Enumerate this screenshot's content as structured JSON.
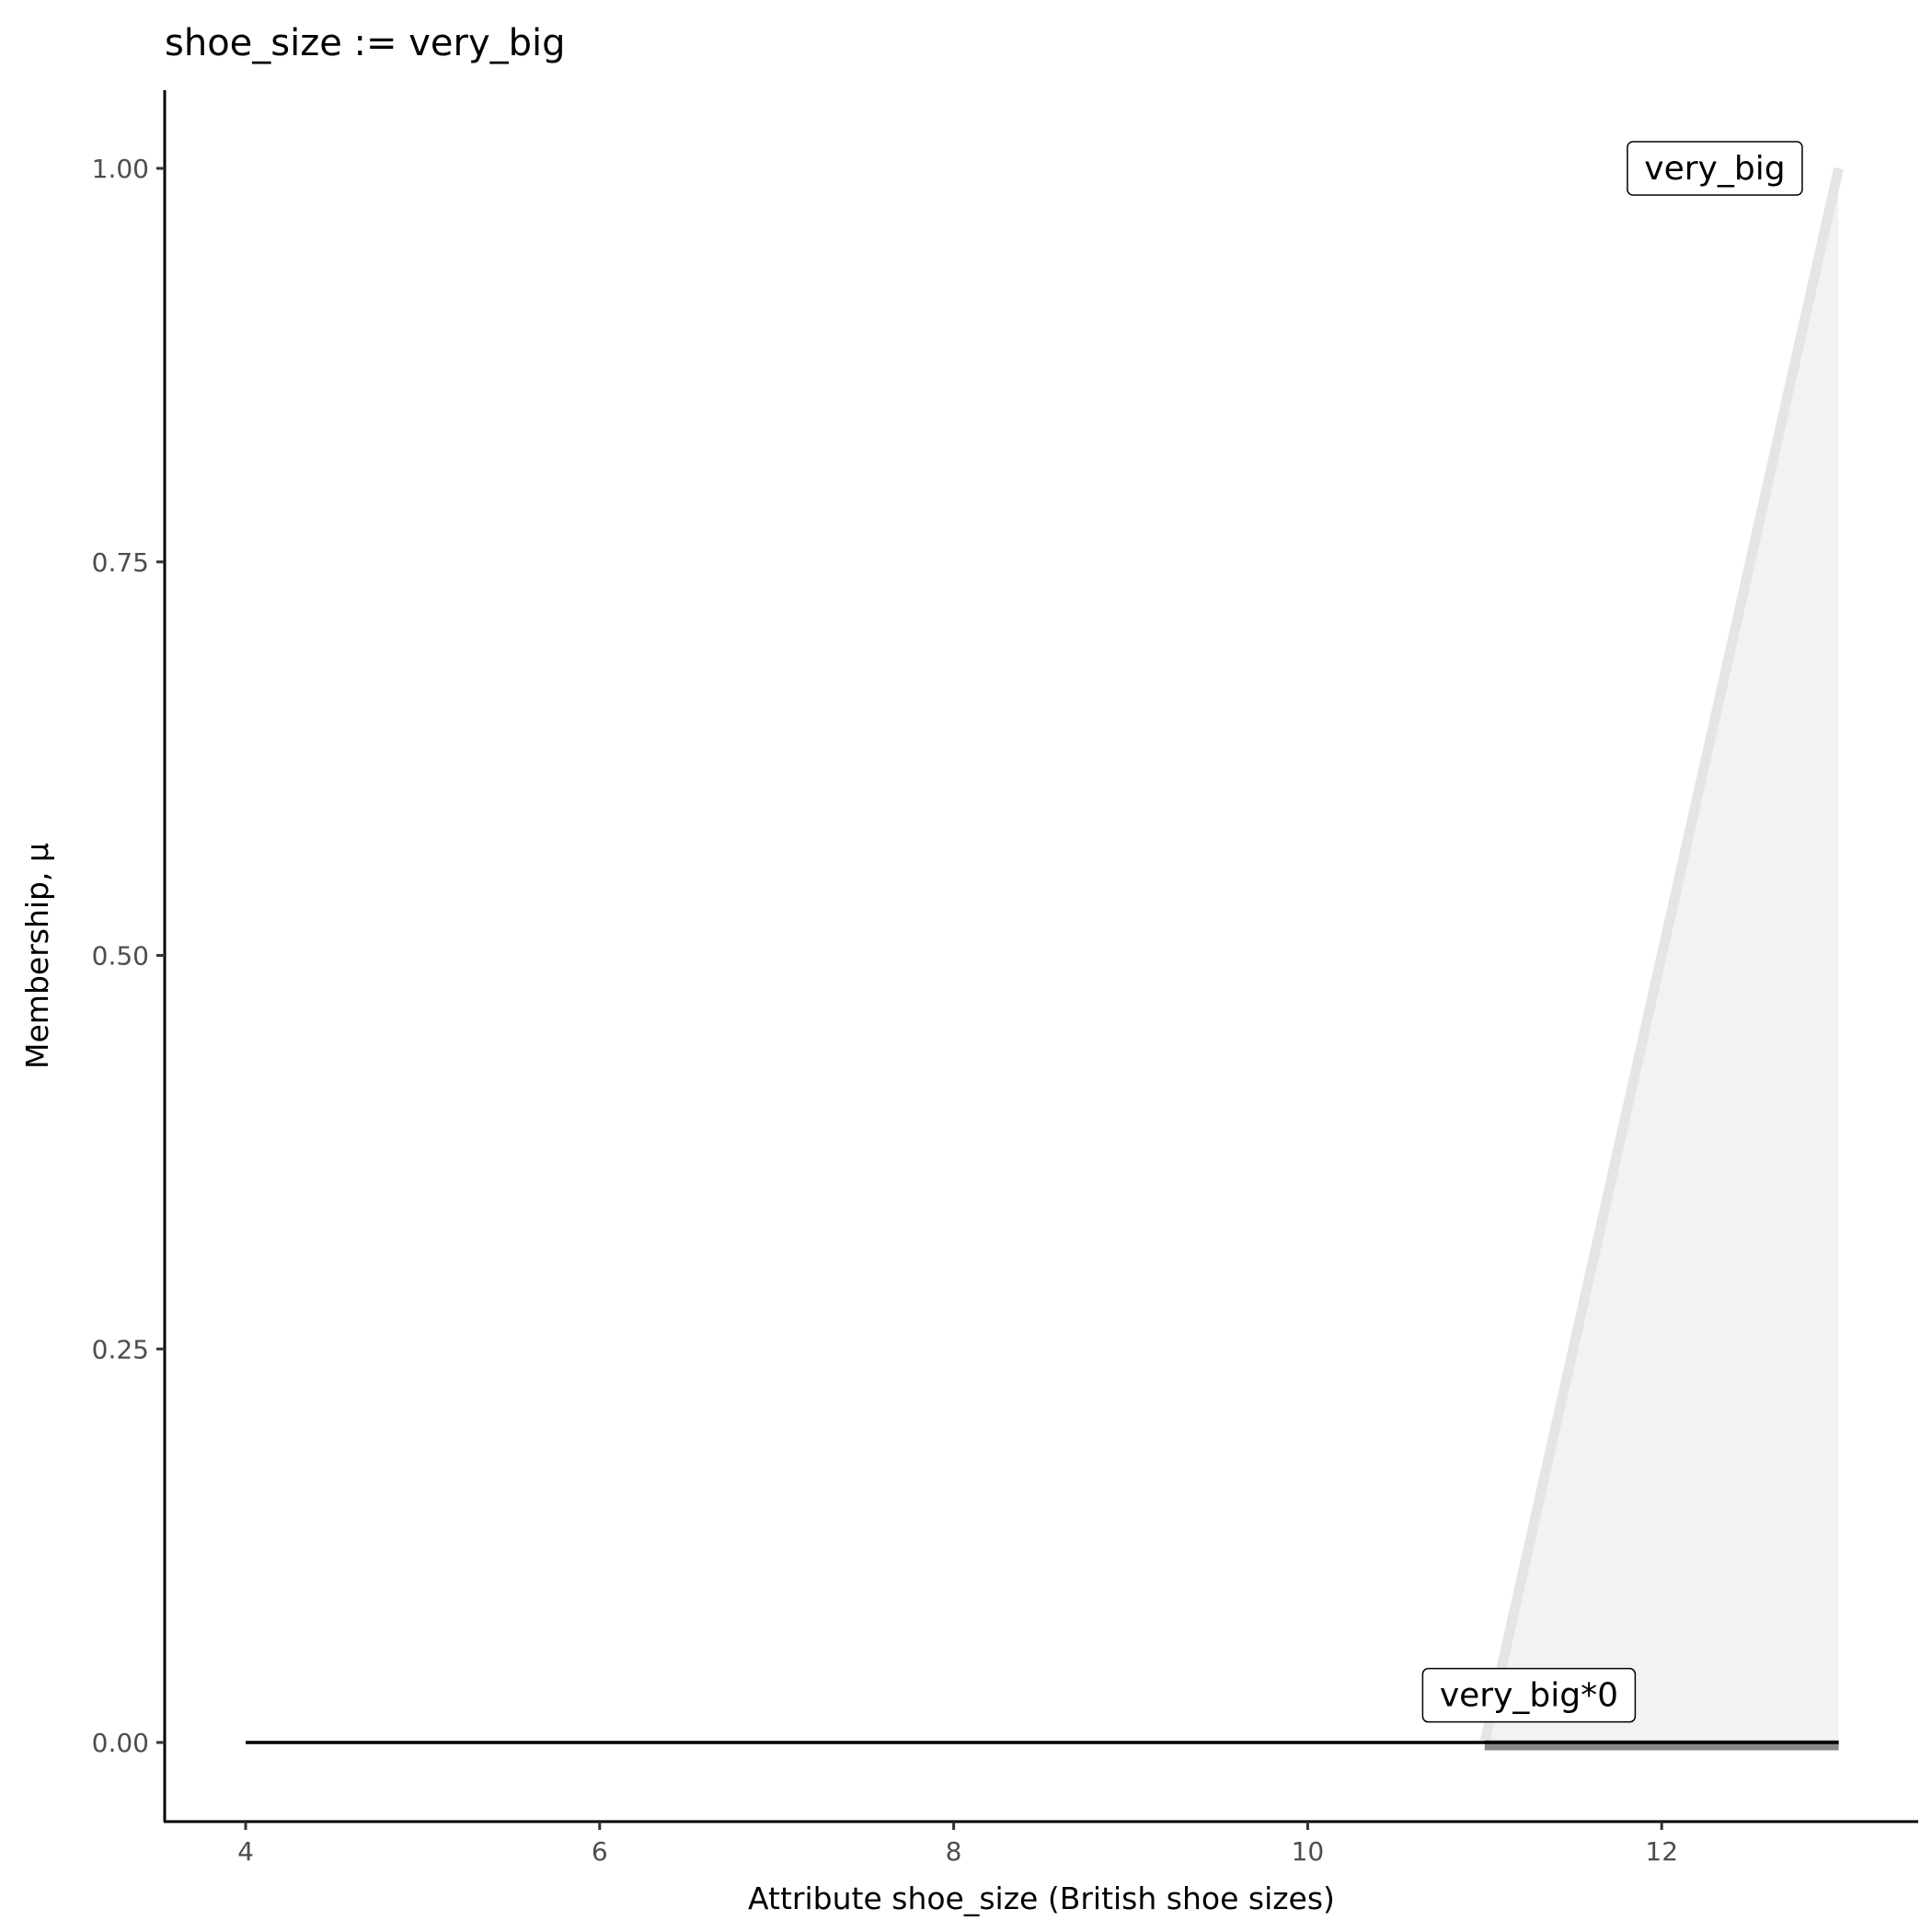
{
  "chart_data": {
    "type": "line",
    "title": "shoe_size := very_big",
    "xlabel": "Attribute shoe_size (British shoe sizes)",
    "ylabel": "Membership, μ",
    "xlim": [
      3.55,
      13.45
    ],
    "ylim": [
      -0.05,
      1.05
    ],
    "x_ticks": [
      4,
      6,
      8,
      10,
      12
    ],
    "y_ticks": [
      "0.00",
      "0.25",
      "0.50",
      "0.75",
      "1.00"
    ],
    "grid": false,
    "series": [
      {
        "name": "very_big",
        "x": [
          11,
          13
        ],
        "y": [
          0,
          1
        ],
        "color": "#e5e5e5",
        "fill": "#f2f2f2"
      },
      {
        "name": "very_big*0",
        "x": [
          4,
          13
        ],
        "y": [
          0,
          0
        ],
        "color": "#000000"
      }
    ],
    "labels": [
      {
        "text": "very_big",
        "x": 12.3,
        "y": 1.0
      },
      {
        "text": "very_big*0",
        "x": 11.25,
        "y": 0.03
      }
    ]
  }
}
